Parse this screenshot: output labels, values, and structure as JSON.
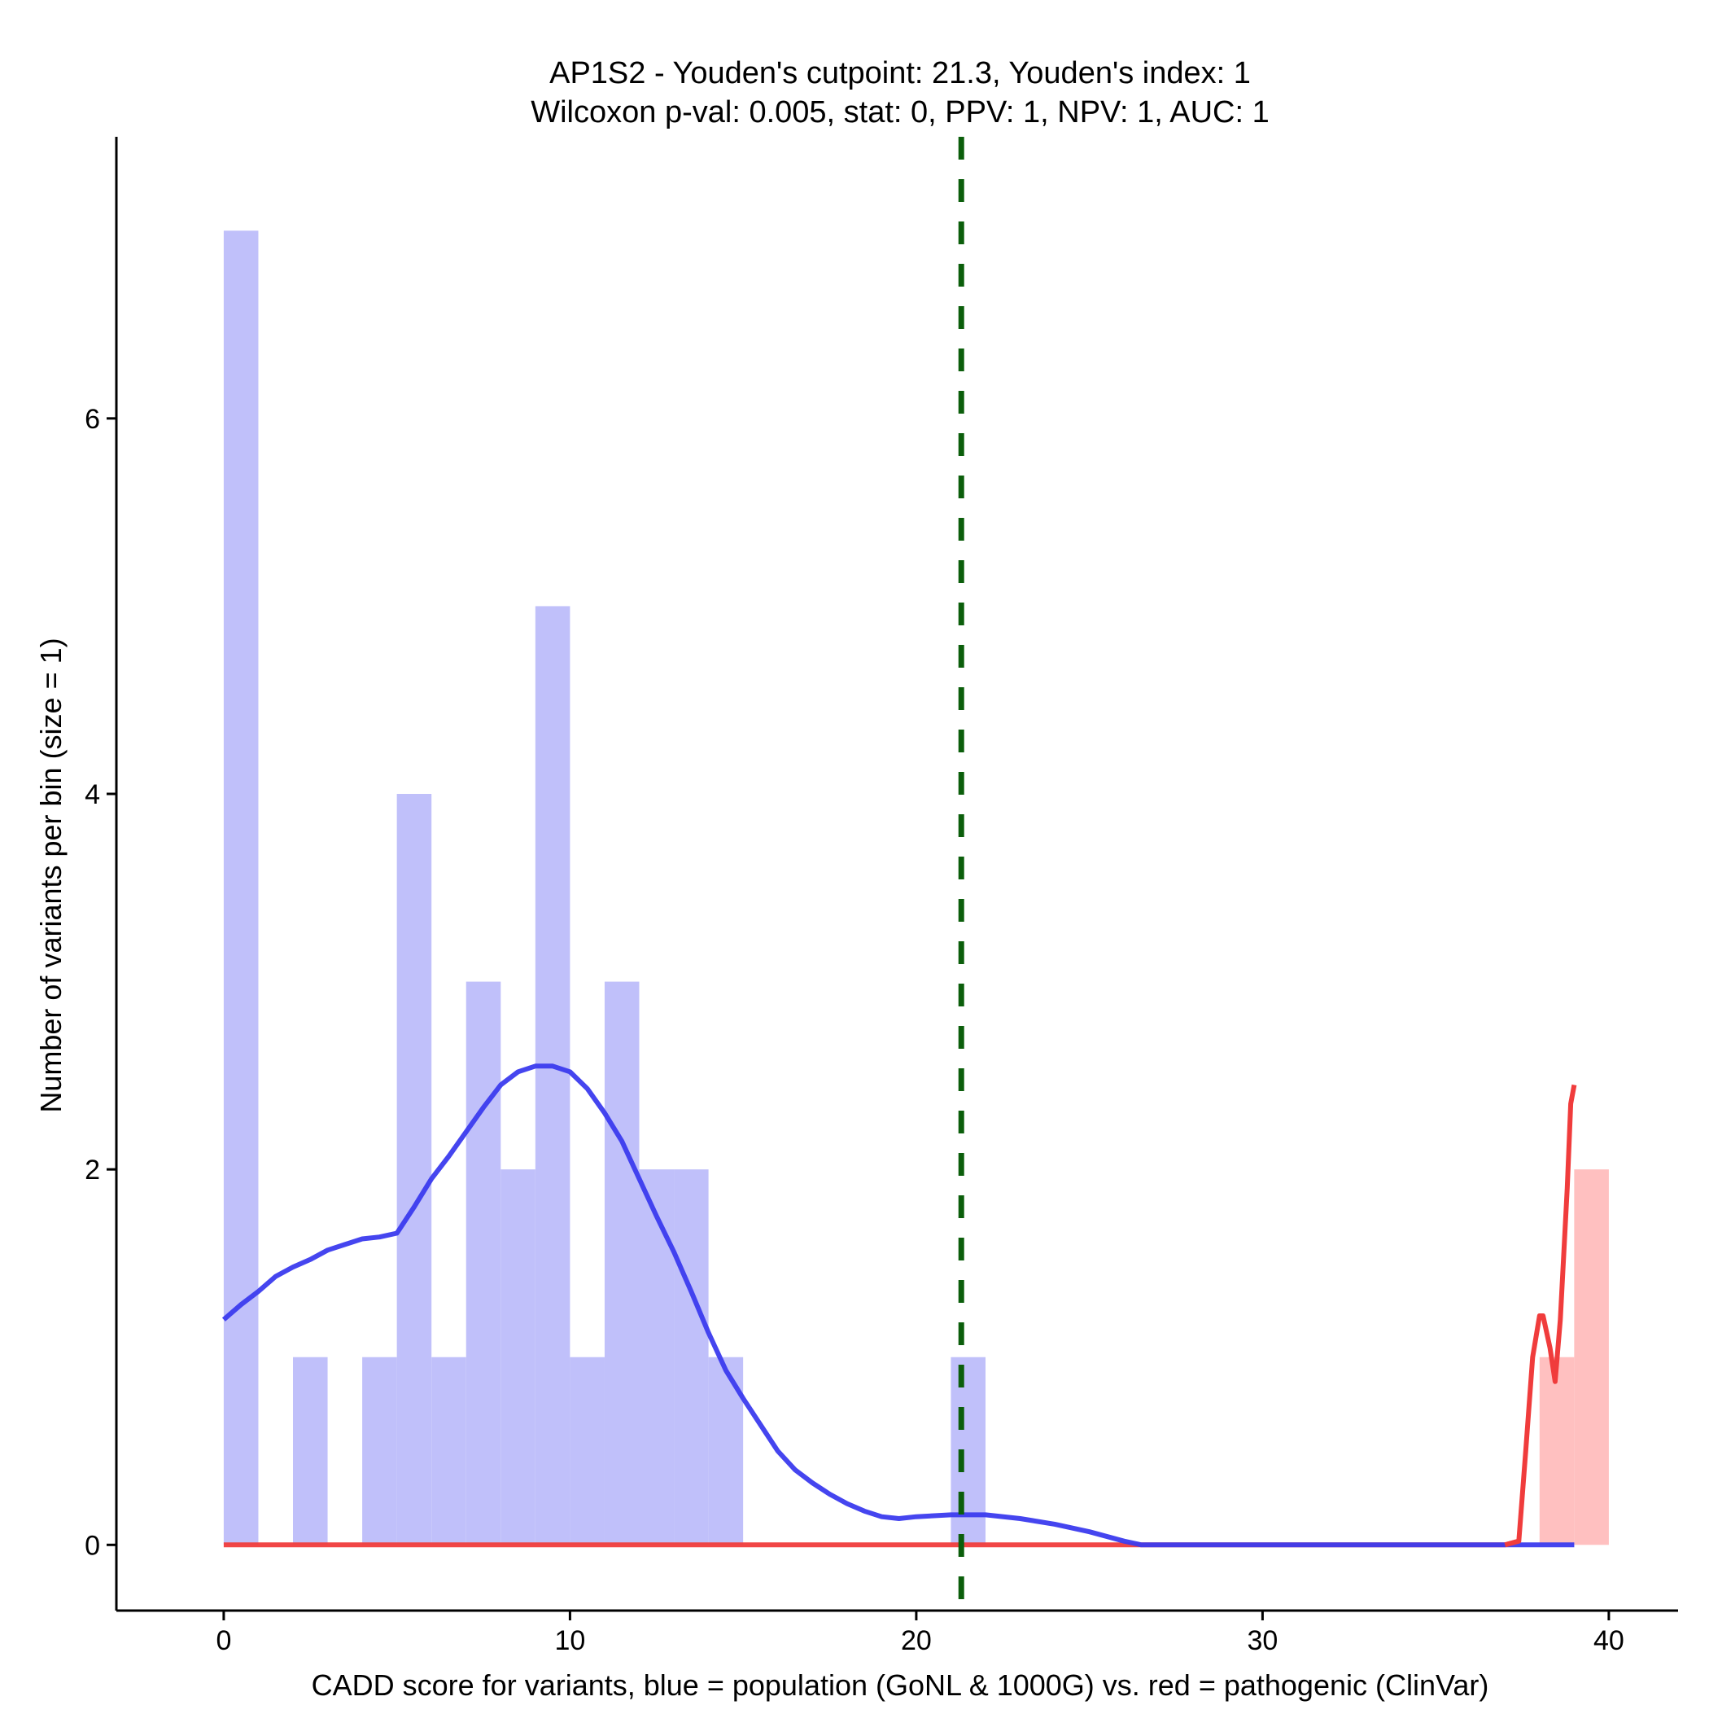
{
  "chart_data": {
    "type": "bar",
    "title": "AP1S2 - Youden's cutpoint: 21.3, Youden's index: 1",
    "subtitle": "Wilcoxon p-val: 0.005, stat: 0, PPV: 1, NPV: 1, AUC: 1",
    "xlabel": "CADD score for variants, blue = population (GoNL & 1000G) vs. red = pathogenic (ClinVar)",
    "ylabel": "Number of variants per bin (size = 1)",
    "xlim": [
      -3.1,
      42.0
    ],
    "ylim": [
      -0.35,
      7.5
    ],
    "x_ticks": [
      0,
      10,
      20,
      30,
      40
    ],
    "y_ticks": [
      0,
      2,
      4,
      6
    ],
    "bin_width": 1,
    "grid": false,
    "legend": "none",
    "cutpoint": 21.3,
    "colors": {
      "population_bar": "#c0c0fa",
      "pathogenic_bar": "#ffc0c0",
      "population_line": "#3b3bee",
      "pathogenic_line": "#f03c3c",
      "cutpoint_line": "#0b5e0b",
      "axis": "#000000"
    },
    "series": [
      {
        "name": "population",
        "bins": [
          {
            "x": 0,
            "count": 7
          },
          {
            "x": 2,
            "count": 1
          },
          {
            "x": 4,
            "count": 1
          },
          {
            "x": 5,
            "count": 4
          },
          {
            "x": 6,
            "count": 1
          },
          {
            "x": 7,
            "count": 3
          },
          {
            "x": 8,
            "count": 2
          },
          {
            "x": 9,
            "count": 5
          },
          {
            "x": 10,
            "count": 1
          },
          {
            "x": 11,
            "count": 3
          },
          {
            "x": 12,
            "count": 2
          },
          {
            "x": 13,
            "count": 2
          },
          {
            "x": 14,
            "count": 1
          },
          {
            "x": 21,
            "count": 1
          }
        ],
        "density_curve": [
          [
            0,
            1.2
          ],
          [
            0.5,
            1.28
          ],
          [
            1,
            1.35
          ],
          [
            1.5,
            1.43
          ],
          [
            2,
            1.48
          ],
          [
            2.5,
            1.52
          ],
          [
            3,
            1.57
          ],
          [
            3.5,
            1.6
          ],
          [
            4,
            1.63
          ],
          [
            4.5,
            1.64
          ],
          [
            5,
            1.66
          ],
          [
            5.5,
            1.8
          ],
          [
            6,
            1.95
          ],
          [
            6.5,
            2.07
          ],
          [
            7,
            2.2
          ],
          [
            7.5,
            2.33
          ],
          [
            8,
            2.45
          ],
          [
            8.5,
            2.52
          ],
          [
            9,
            2.55
          ],
          [
            9.5,
            2.55
          ],
          [
            10,
            2.52
          ],
          [
            10.5,
            2.43
          ],
          [
            11,
            2.3
          ],
          [
            11.5,
            2.15
          ],
          [
            12,
            1.95
          ],
          [
            12.5,
            1.75
          ],
          [
            13,
            1.56
          ],
          [
            13.5,
            1.35
          ],
          [
            14,
            1.13
          ],
          [
            14.5,
            0.93
          ],
          [
            15,
            0.78
          ],
          [
            15.5,
            0.64
          ],
          [
            16,
            0.5
          ],
          [
            16.5,
            0.4
          ],
          [
            17,
            0.33
          ],
          [
            17.5,
            0.27
          ],
          [
            18,
            0.22
          ],
          [
            18.5,
            0.18
          ],
          [
            19,
            0.15
          ],
          [
            19.5,
            0.14
          ],
          [
            20,
            0.15
          ],
          [
            21,
            0.16
          ],
          [
            22,
            0.16
          ],
          [
            23,
            0.14
          ],
          [
            24,
            0.11
          ],
          [
            25,
            0.07
          ],
          [
            26,
            0.02
          ],
          [
            26.5,
            0.0
          ],
          [
            30,
            0.0
          ],
          [
            35,
            0.0
          ],
          [
            39,
            0.0
          ]
        ]
      },
      {
        "name": "pathogenic",
        "bins": [
          {
            "x": 38,
            "count": 1
          },
          {
            "x": 39,
            "count": 2
          }
        ],
        "density_curve": [
          [
            0,
            0.0
          ],
          [
            10,
            0.0
          ],
          [
            20,
            0.0
          ],
          [
            30,
            0.0
          ],
          [
            37.0,
            0.0
          ],
          [
            37.4,
            0.02
          ],
          [
            37.6,
            0.5
          ],
          [
            37.8,
            1.0
          ],
          [
            38.0,
            1.22
          ],
          [
            38.1,
            1.22
          ],
          [
            38.3,
            1.05
          ],
          [
            38.45,
            0.87
          ],
          [
            38.6,
            1.2
          ],
          [
            38.8,
            1.9
          ],
          [
            38.9,
            2.35
          ],
          [
            39.0,
            2.45
          ]
        ]
      }
    ]
  }
}
